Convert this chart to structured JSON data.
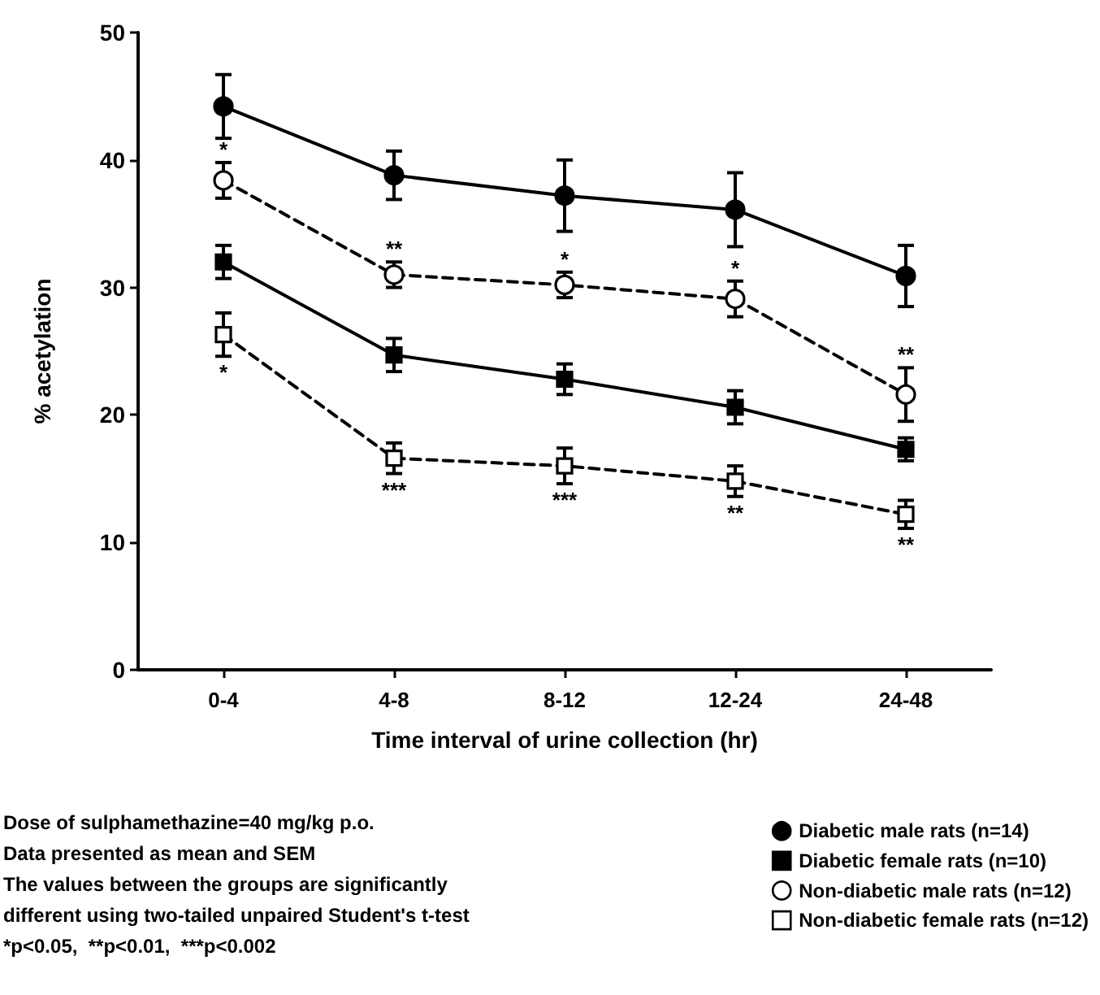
{
  "chart_data": {
    "type": "line",
    "xlabel": "Time interval of urine collection (hr)",
    "ylabel": "% acetylation",
    "categories": [
      "0-4",
      "4-8",
      "8-12",
      "12-24",
      "24-48"
    ],
    "ylim": [
      0,
      50
    ],
    "yticks": [
      0,
      10,
      20,
      30,
      40,
      50
    ],
    "grid": false,
    "legend": "bottom right",
    "series": [
      {
        "name": "Diabetic male rats (n=14)",
        "color": "#000000",
        "marker": "circle",
        "line_style": "solid",
        "values": [
          44.2,
          38.8,
          37.2,
          36.1,
          30.9
        ],
        "errors": [
          2.5,
          1.9,
          2.8,
          2.9,
          2.4
        ]
      },
      {
        "name": "Diabetic female rats (n=10)",
        "color": "#000000",
        "marker": "square",
        "line_style": "solid",
        "values": [
          32.0,
          24.7,
          22.8,
          20.6,
          17.3
        ],
        "errors": [
          1.3,
          1.3,
          1.2,
          1.3,
          0.9
        ]
      },
      {
        "name": "Non-diabetic male rats (n=12)",
        "color": "#000000",
        "marker": "circle",
        "line_style": "dashed",
        "values": [
          38.4,
          31.0,
          30.2,
          29.1,
          21.6
        ],
        "errors": [
          1.4,
          1.0,
          1.0,
          1.4,
          2.1
        ]
      },
      {
        "name": "Non-diabetic female rats (n=12)",
        "color": "#000000",
        "marker": "square",
        "line_style": "dashed",
        "values": [
          26.3,
          16.6,
          16.0,
          14.8,
          12.2
        ],
        "errors": [
          1.7,
          1.2,
          1.4,
          1.2,
          1.1
        ]
      }
    ],
    "annotations": [
      {
        "text": "*",
        "x": "0-4",
        "y": 38.4
      },
      {
        "text": "**",
        "x": "4-8",
        "y": 31.0
      },
      {
        "text": "*",
        "x": "8-12",
        "y": 30.2
      },
      {
        "text": "*",
        "x": "12-24",
        "y": 29.1
      },
      {
        "text": "**",
        "x": "24-48",
        "y": 21.6
      },
      {
        "text": "*",
        "x": "0-4",
        "y": 26.3
      },
      {
        "text": "***",
        "x": "4-8",
        "y": 16.6
      },
      {
        "text": "***",
        "x": "8-12",
        "y": 16.0
      },
      {
        "text": "**",
        "x": "12-24",
        "y": 14.8
      },
      {
        "text": "**",
        "x": "24-48",
        "y": 12.2
      },
      "Dose of sulphamethazine=40 mg/kg p.o.",
      "Data presented as mean and SEM",
      "The values between the groups are significantly",
      "different using two-tailed unpaired Student's t-test",
      "*p<0.05,  **p<0.01,  ***p<0.002"
    ]
  }
}
